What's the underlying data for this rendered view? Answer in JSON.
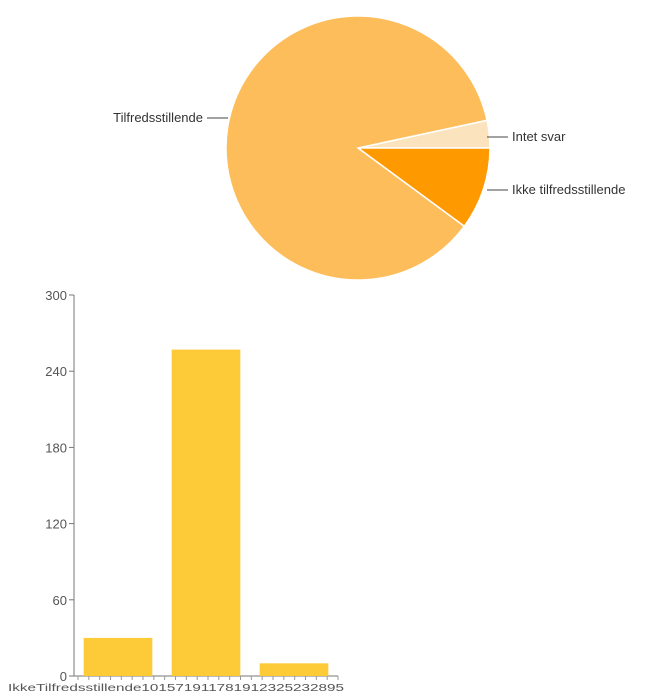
{
  "chart_data": [
    {
      "type": "pie",
      "slices": [
        {
          "label": "Tilfredsstillende",
          "value": 257,
          "color": "#fdbd5a"
        },
        {
          "label": "Intet svar",
          "value": 10,
          "color": "#fbe4bd"
        },
        {
          "label": "Ikke tilfredsstillende",
          "value": 30,
          "color": "#ff9900"
        }
      ]
    },
    {
      "type": "bar",
      "categories": [
        "Ikke tilfredsstillende",
        "Tilfredsstillende",
        "Intet svar"
      ],
      "values": [
        30,
        257,
        10
      ],
      "ylim": [
        0,
        300
      ],
      "yticks": [
        0,
        60,
        120,
        180,
        240,
        300
      ],
      "bar_color": "#fdcb37",
      "xtick_overlap_text": "IkkeTilfredsstillende101571911781912325232895",
      "grid": false
    }
  ]
}
